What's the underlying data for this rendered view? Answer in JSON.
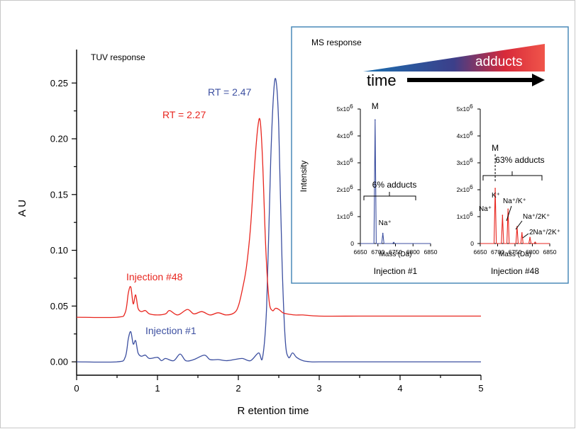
{
  "colors": {
    "injection1": "#3c4fa0",
    "injection48": "#e8261f",
    "inset_border": "#4a8ab8"
  },
  "chart_data": [
    {
      "type": "line",
      "title": "TUV response",
      "xlabel": "R etention time",
      "ylabel": "A U",
      "xlim": [
        0,
        5
      ],
      "ylim": [
        -0.012,
        0.28
      ],
      "xticks": [
        "0",
        "1",
        "2",
        "3",
        "4",
        "5"
      ],
      "yticks": [
        "0.00",
        "0.05",
        "0.10",
        "0.15",
        "0.20",
        "0.25"
      ],
      "series": [
        {
          "name": "Injection #1",
          "color": "#3c4fa0",
          "x": [
            0,
            0.5,
            0.6,
            0.64,
            0.67,
            0.7,
            0.73,
            0.76,
            0.8,
            0.85,
            0.9,
            1.0,
            1.05,
            1.1,
            1.2,
            1.28,
            1.35,
            1.45,
            1.58,
            1.65,
            1.75,
            1.85,
            1.95,
            2.05,
            2.15,
            2.25,
            2.3,
            2.35,
            2.4,
            2.44,
            2.47,
            2.5,
            2.54,
            2.58,
            2.62,
            2.67,
            2.72,
            2.8,
            2.9,
            3.0,
            3.5,
            4.0,
            4.5,
            5.0
          ],
          "y": [
            0.0,
            0.0,
            0.004,
            0.021,
            0.027,
            0.016,
            0.019,
            0.008,
            0.005,
            0.006,
            0.003,
            0.004,
            0.001,
            0.003,
            0.001,
            0.007,
            0.001,
            0.002,
            0.006,
            0.002,
            0.002,
            0.001,
            0.002,
            0.003,
            0.001,
            0.008,
            0.004,
            0.05,
            0.18,
            0.245,
            0.25,
            0.21,
            0.09,
            0.02,
            0.004,
            0.008,
            0.004,
            0.001,
            0.0,
            0.0,
            0.0,
            0.0,
            0.0,
            0.0
          ]
        },
        {
          "name": "Injection #48",
          "color": "#e8261f",
          "x": [
            0,
            0.5,
            0.6,
            0.64,
            0.67,
            0.7,
            0.73,
            0.76,
            0.8,
            0.85,
            0.9,
            1.0,
            1.1,
            1.15,
            1.25,
            1.37,
            1.45,
            1.55,
            1.65,
            1.75,
            1.85,
            1.95,
            2.0,
            2.05,
            2.1,
            2.15,
            2.2,
            2.24,
            2.27,
            2.3,
            2.34,
            2.38,
            2.42,
            2.46,
            2.5,
            2.55,
            2.6,
            2.7,
            2.8,
            3.0,
            3.5,
            4.0,
            4.5,
            5.0
          ],
          "y": [
            0.04,
            0.04,
            0.044,
            0.062,
            0.067,
            0.052,
            0.06,
            0.048,
            0.045,
            0.046,
            0.043,
            0.042,
            0.043,
            0.046,
            0.042,
            0.047,
            0.043,
            0.045,
            0.042,
            0.044,
            0.042,
            0.044,
            0.05,
            0.065,
            0.085,
            0.12,
            0.175,
            0.21,
            0.216,
            0.18,
            0.1,
            0.055,
            0.046,
            0.048,
            0.047,
            0.044,
            0.043,
            0.042,
            0.042,
            0.041,
            0.041,
            0.041,
            0.041,
            0.041
          ]
        }
      ],
      "annotations": [
        "RT = 2.47",
        "RT = 2.27",
        "Injection #48",
        "Injection #1"
      ]
    },
    {
      "type": "line",
      "title": "MS response",
      "subplot": "Injection #1",
      "xlabel": "Mass (Da)",
      "ylabel": "Intensity",
      "xlim": [
        6650,
        6850
      ],
      "ylim": [
        0,
        5000000
      ],
      "xticks": [
        "6650",
        "6700",
        "6750",
        "6800",
        "6850"
      ],
      "yticks": [
        "0",
        "1x10",
        "2x10",
        "3x10",
        "4x10",
        "5x10"
      ],
      "ytick_exponent": "6",
      "series": [
        {
          "name": "Injection #1",
          "color": "#3c4fa0",
          "peaks": [
            {
              "mass": 6692,
              "intensity": 4600000,
              "label": "M"
            },
            {
              "mass": 6714,
              "intensity": 380000,
              "label": "Na⁺"
            },
            {
              "mass": 6745,
              "intensity": 40000,
              "label": ""
            }
          ]
        }
      ],
      "bracket_label": "6% adducts"
    },
    {
      "type": "line",
      "title": "MS response",
      "subplot": "Injection #48",
      "xlabel": "Mass (Da)",
      "ylabel": "",
      "xlim": [
        6650,
        6850
      ],
      "ylim": [
        0,
        5000000
      ],
      "xticks": [
        "6650",
        "6700",
        "6750",
        "6800",
        "6850"
      ],
      "yticks": [
        "0",
        "1x10",
        "2x10",
        "3x10",
        "4x10",
        "5x10"
      ],
      "ytick_exponent": "6",
      "series": [
        {
          "name": "Injection #48",
          "color": "#e8261f",
          "peaks": [
            {
              "mass": 6693,
              "intensity": 2050000,
              "label": "M"
            },
            {
              "mass": 6714,
              "intensity": 1050000,
              "label": "Na⁺"
            },
            {
              "mass": 6730,
              "intensity": 1280000,
              "label": "K⁺"
            },
            {
              "mass": 6756,
              "intensity": 630000,
              "label": "Na⁺/K⁺"
            },
            {
              "mass": 6770,
              "intensity": 400000,
              "label": "Na⁺/2K⁺"
            },
            {
              "mass": 6793,
              "intensity": 230000,
              "label": "2Na⁺/2K⁺"
            },
            {
              "mass": 6808,
              "intensity": 50000,
              "label": ""
            }
          ]
        }
      ],
      "bracket_label": "63% adducts"
    }
  ],
  "inset": {
    "title": "MS response",
    "gradient_label": "adducts",
    "time_label": "time",
    "subplot1_label": "Injection #1",
    "subplot2_label": "Injection #48"
  }
}
